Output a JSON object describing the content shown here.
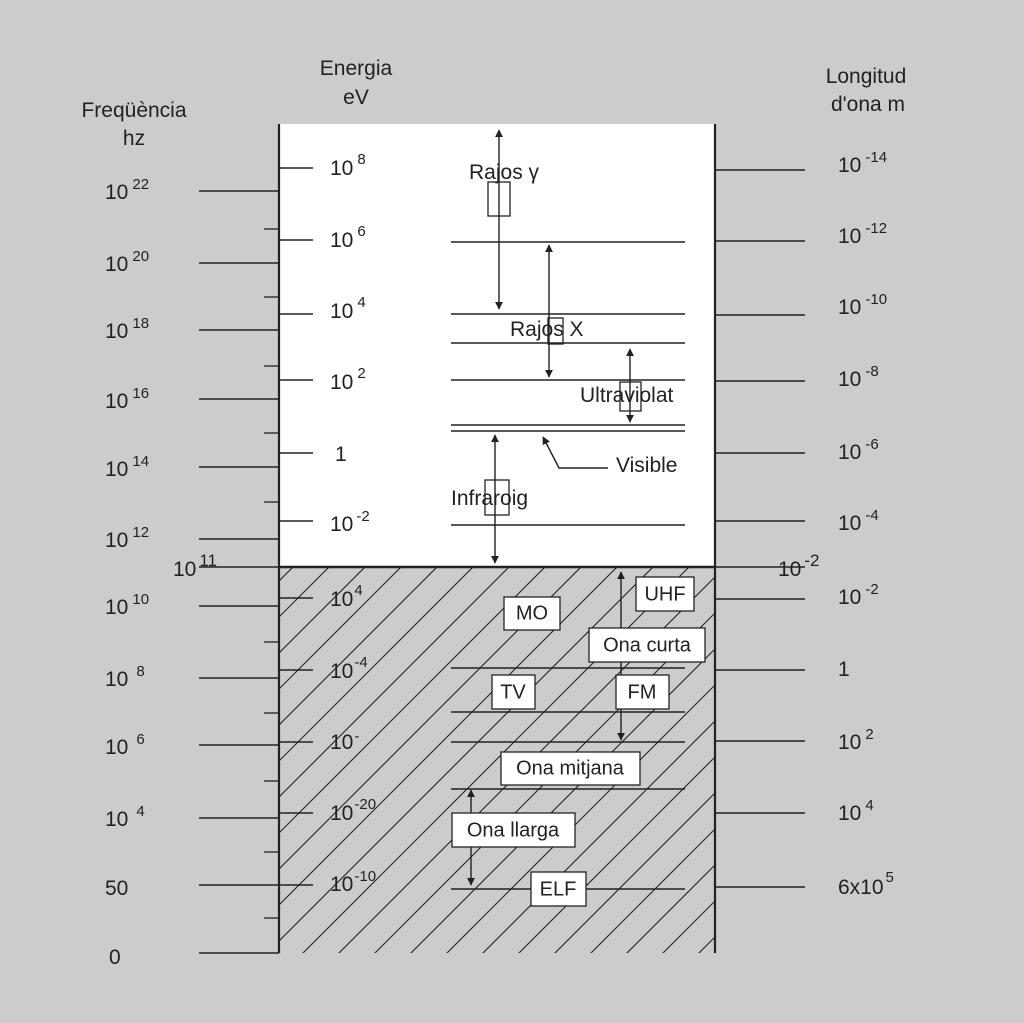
{
  "colors": {
    "background": "#cccccc",
    "ionizing_region": "#ffffff",
    "ink": "#222222"
  },
  "headers": {
    "frequency_title": "Freqüència",
    "frequency_unit": "hz",
    "energy_title": "Energia",
    "energy_unit": "eV",
    "wavelength_title": "Longitud",
    "wavelength_unit": "d'ona m"
  },
  "frequency_scale": [
    {
      "base": "10",
      "exp": "22"
    },
    {
      "base": "10",
      "exp": "20"
    },
    {
      "base": "10",
      "exp": "18"
    },
    {
      "base": "10",
      "exp": "16"
    },
    {
      "base": "10",
      "exp": "14"
    },
    {
      "base": "10",
      "exp": "12"
    },
    {
      "base": "10",
      "exp": "10"
    },
    {
      "base": "10",
      "exp": "8"
    },
    {
      "base": "10",
      "exp": "6"
    },
    {
      "base": "10",
      "exp": "4"
    },
    {
      "base": "50",
      "exp": ""
    },
    {
      "base": "0",
      "exp": ""
    }
  ],
  "frequency_boundary": {
    "base": "10",
    "exp": "11"
  },
  "energy_scale": [
    {
      "base": "10",
      "exp": "8"
    },
    {
      "base": "10",
      "exp": "6"
    },
    {
      "base": "10",
      "exp": "4"
    },
    {
      "base": "10",
      "exp": "2"
    },
    {
      "base": "1",
      "exp": ""
    },
    {
      "base": "10",
      "exp": "-2"
    },
    {
      "base": "10",
      "exp": "4"
    },
    {
      "base": "10",
      "exp": "-4"
    },
    {
      "base": "10",
      "exp": "-"
    },
    {
      "base": "10",
      "exp": "-20"
    },
    {
      "base": "10",
      "exp": "-10"
    }
  ],
  "wavelength_scale": [
    {
      "base": "10",
      "exp": "-14"
    },
    {
      "base": "10",
      "exp": "-12"
    },
    {
      "base": "10",
      "exp": "-10"
    },
    {
      "base": "10",
      "exp": "-8"
    },
    {
      "base": "10",
      "exp": "-6"
    },
    {
      "base": "10",
      "exp": "-4"
    },
    {
      "base": "10",
      "exp": "-2"
    },
    {
      "base": "1",
      "exp": ""
    },
    {
      "base": "10",
      "exp": "2"
    },
    {
      "base": "10",
      "exp": "4"
    },
    {
      "base": "6x10",
      "exp": "5"
    }
  ],
  "wavelength_boundary": {
    "base": "10",
    "exp": "-2"
  },
  "bands": {
    "gamma": "Rajos γ",
    "xray": "Rajos X",
    "ultraviolet": "Ultraviolat",
    "visible": "Visible",
    "infrared": "Infraroig",
    "mo": "MO",
    "uhf": "UHF",
    "short_wave": "Ona curta",
    "tv": "TV",
    "fm": "FM",
    "medium_wave": "Ona mitjana",
    "long_wave": "Ona llarga",
    "elf": "ELF"
  }
}
